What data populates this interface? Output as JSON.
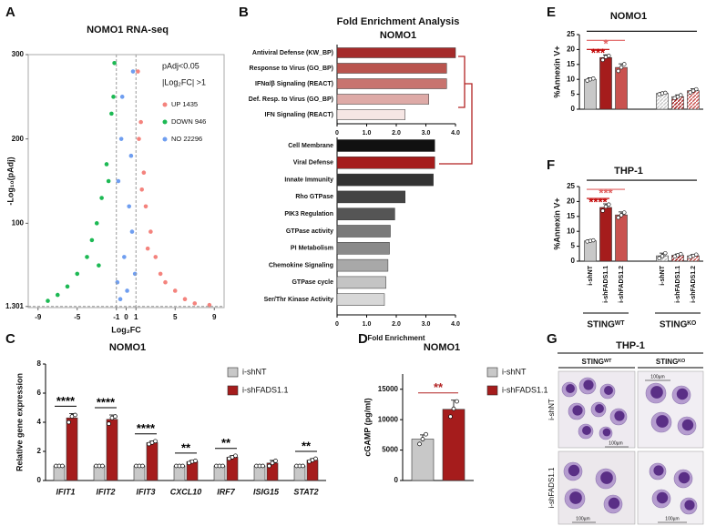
{
  "chart_data": [
    {
      "panel": "A",
      "type": "scatter",
      "title": "NOMO1 RNA-seq",
      "x_label": "Log₂FC",
      "y_label": "-Log₁₀(pAdj)",
      "xlim": [
        -10,
        10
      ],
      "xticks": [
        -9,
        -5,
        -1,
        0,
        1,
        5,
        9
      ],
      "ylim": [
        0,
        300
      ],
      "yticks": [
        1.301,
        100,
        200,
        300
      ],
      "legend_title": [
        "pAdj<0.05",
        "|Log₂FC| >1"
      ],
      "thresholds": {
        "x": [
          -1,
          1
        ],
        "y": 1.301
      },
      "series": [
        {
          "name": "UP 1435",
          "color": "#f4837d",
          "x": [
            1.2,
            1.5,
            1.8,
            2,
            2.5,
            3,
            3.5,
            4,
            5,
            6,
            7,
            8.5,
            1.3,
            1.6,
            2.2
          ],
          "values": [
            280,
            220,
            160,
            120,
            90,
            60,
            40,
            30,
            20,
            10,
            5,
            3,
            200,
            140,
            70
          ]
        },
        {
          "name": "DOWN 946",
          "color": "#1db954",
          "x": [
            -1.2,
            -1.5,
            -2,
            -2.5,
            -3,
            -3.5,
            -4,
            -5,
            -6,
            -7,
            -8,
            -1.8,
            -1.3,
            -2.8
          ],
          "values": [
            290,
            230,
            170,
            130,
            100,
            80,
            60,
            40,
            25,
            15,
            8,
            150,
            250,
            50
          ]
        },
        {
          "name": "NO 22296",
          "color": "#6f9ef0",
          "x": [
            -0.5,
            -0.8,
            0.3,
            0.6,
            -0.2,
            0.9,
            -0.9,
            0.1,
            0.5,
            -0.4,
            0.7,
            -0.6
          ],
          "values": [
            200,
            150,
            120,
            90,
            60,
            40,
            30,
            20,
            180,
            250,
            280,
            10
          ]
        }
      ]
    },
    {
      "panel": "B",
      "type": "hbar",
      "title": "Fold Enrichment Analysis",
      "subtitle": "NOMO1",
      "categories": [
        "Antiviral Defense (KW_BP)",
        "Response to Virus (GO_BP)",
        "IFNα/β Signaling (REACT)",
        "Def. Resp. to Virus (GO_BP)",
        "IFN Signaling (REACT)"
      ],
      "values": [
        4.0,
        3.7,
        3.7,
        3.1,
        2.3
      ],
      "colors": [
        "#a52a2a",
        "#b9544e",
        "#c8746f",
        "#deaaa7",
        "#f6e6e4"
      ],
      "xlim": [
        0,
        4
      ],
      "xticks": [
        0,
        {
          "value": 1,
          "label": "1.0"
        },
        {
          "value": 2,
          "label": "2.0"
        },
        {
          "value": 3,
          "label": "3.0"
        },
        {
          "value": 4,
          "label": "4.0"
        }
      ]
    },
    {
      "type": "hbar",
      "x_label": "Fold Enrichment",
      "categories": [
        "Cell Membrane",
        "Viral Defense",
        "Innate Immunity",
        "Rho GTPase",
        "PIK3 Regulation",
        "GTPase activity",
        "PI Metabolism",
        "Chemokine Signaling",
        "GTPase cycle",
        "Ser/Thr Kinase Activity"
      ],
      "values": [
        3.3,
        3.3,
        3.25,
        2.3,
        1.95,
        1.8,
        1.77,
        1.72,
        1.65,
        1.6
      ],
      "colors": [
        "#111111",
        "#a51c1c",
        "#333333",
        "#444444",
        "#555555",
        "#7a7a7a",
        "#8a8a8a",
        "#a8a8a8",
        "#c4c4c4",
        "#d8d8d8"
      ],
      "xlim": [
        0,
        4
      ],
      "xticks": [
        0,
        {
          "value": 1,
          "label": "1.0"
        },
        {
          "value": 2,
          "label": "2.0"
        },
        {
          "value": 3,
          "label": "3.0"
        },
        {
          "value": 4,
          "label": "4.0"
        }
      ]
    },
    {
      "panel": "C",
      "type": "grouped_bar",
      "title": "NOMO1",
      "y_label": "Relative gene expression",
      "categories": [
        "IFIT1",
        "IFIT2",
        "IFIT3",
        "CXCL10",
        "IRF7",
        "ISIG15",
        "STAT2"
      ],
      "ylim": [
        0,
        8
      ],
      "yticks": [
        0,
        2,
        4,
        6,
        8
      ],
      "series": [
        {
          "name": "i-shNT",
          "color": "#c8c8c8",
          "values": [
            1,
            1,
            1,
            1,
            1,
            1,
            1
          ],
          "errors": [
            0.05,
            0.05,
            0.05,
            0.05,
            0.05,
            0.05,
            0.05
          ],
          "points": [
            [
              1,
              1,
              1
            ],
            [
              1,
              1,
              1
            ],
            [
              1,
              1,
              1
            ],
            [
              1,
              1,
              1
            ],
            [
              1,
              1,
              1
            ],
            [
              1,
              1,
              1
            ],
            [
              1,
              1,
              1
            ]
          ]
        },
        {
          "name": "i-shFADS1.1",
          "color": "#a51c1c",
          "values": [
            4.3,
            4.2,
            2.6,
            1.3,
            1.6,
            1.2,
            1.4
          ],
          "errors": [
            0.3,
            0.3,
            0.1,
            0.08,
            0.1,
            0.18,
            0.1
          ],
          "points": [
            [
              4.0,
              4.4,
              4.5
            ],
            [
              3.9,
              4.3,
              4.4
            ],
            [
              2.5,
              2.6,
              2.7
            ],
            [
              1.2,
              1.3,
              1.35
            ],
            [
              1.5,
              1.6,
              1.7
            ],
            [
              1.0,
              1.2,
              1.35
            ],
            [
              1.3,
              1.4,
              1.5
            ]
          ]
        }
      ],
      "significance": [
        "****",
        "****",
        "****",
        "**",
        "**",
        null,
        "**"
      ],
      "significance_color": "#000000"
    },
    {
      "panel": "D",
      "type": "grouped_bar",
      "title": "NOMO1",
      "y_label": "cGAMP (pg/ml)",
      "ylim": [
        0,
        17500
      ],
      "yticks": [
        0,
        5000,
        10000,
        15000
      ],
      "series": [
        {
          "name": "i-shNT",
          "color": "#c8c8c8",
          "values": [
            6800
          ],
          "errors": [
            700
          ],
          "points": [
            [
              6000,
              6800,
              7600
            ]
          ]
        },
        {
          "name": "i-shFADS1.1",
          "color": "#a51c1c",
          "values": [
            11700
          ],
          "errors": [
            1500
          ],
          "points": [
            [
              10500,
              11800,
              13000
            ]
          ]
        }
      ],
      "significance": [
        "**"
      ],
      "significance_color": "#b22222"
    },
    {
      "panel": "E",
      "type": "bar",
      "title": "NOMO1",
      "y_label": "%Annexin V+",
      "ylim": [
        0,
        25
      ],
      "yticks": [
        0,
        5,
        10,
        15,
        20,
        25
      ],
      "values": [
        10,
        17.3,
        14,
        5.3,
        4.2,
        6.2
      ],
      "errors": [
        0.5,
        0.9,
        1.2,
        0.3,
        0.6,
        0.6
      ],
      "points": [
        [
          9.6,
          10,
          10.3
        ],
        [
          16.5,
          17.5,
          17.9
        ],
        [
          12.8,
          14,
          15.1
        ],
        [
          5,
          5.3,
          5.5
        ],
        [
          3.7,
          4.2,
          4.7
        ],
        [
          5.6,
          6.2,
          6.7
        ]
      ],
      "colors": [
        "#c8c8c8",
        "#a51c1c",
        "#c9524f",
        "#c8c8c8",
        "#a51c1c",
        "#c9524f"
      ],
      "hatched": [
        false,
        false,
        false,
        true,
        true,
        true
      ],
      "significance": [
        {
          "from": 0,
          "to": 1,
          "label": "***",
          "color": "#c00000"
        },
        {
          "from": 0,
          "to": 2,
          "label": "*",
          "color": "#e06060"
        },
        {
          "from": 0,
          "to": 5,
          "color": "#000000"
        }
      ]
    },
    {
      "panel": "F",
      "type": "bar",
      "title": "THP-1",
      "y_label": "%Annexin V+",
      "ylim": [
        0,
        25
      ],
      "yticks": [
        0,
        5,
        10,
        15,
        20,
        25
      ],
      "categories": [
        "i-shNT",
        "i-shFADS1.1",
        "i-shFADS1.2",
        "i-shNT",
        "i-shFADS1.1",
        "i-shFADS1.2"
      ],
      "group_labels": [
        "STINGᵂᵀ",
        "STINGᴷᴼ"
      ],
      "values": [
        6.8,
        18,
        15.5,
        1.8,
        2,
        1.8
      ],
      "errors": [
        0.3,
        1.2,
        1.0,
        0.9,
        0.4,
        0.4
      ],
      "points": [
        [
          6.6,
          6.8,
          7
        ],
        [
          16.9,
          18.3,
          19
        ],
        [
          14.6,
          15.4,
          16.3
        ],
        [
          1,
          1.7,
          2.7
        ],
        [
          1.6,
          2,
          2.4
        ],
        [
          1.4,
          1.8,
          2.2
        ]
      ],
      "colors": [
        "#c8c8c8",
        "#a51c1c",
        "#c9524f",
        "#c8c8c8",
        "#a51c1c",
        "#c9524f"
      ],
      "hatched": [
        false,
        false,
        false,
        true,
        true,
        true
      ],
      "significance": [
        {
          "from": 0,
          "to": 1,
          "label": "****",
          "color": "#c00000"
        },
        {
          "from": 0,
          "to": 2,
          "label": "***",
          "color": "#e06060"
        },
        {
          "from": 0,
          "to": 5,
          "color": "#000000"
        }
      ]
    }
  ],
  "panel_g": {
    "panel": "G",
    "title": "THP-1",
    "columns": [
      "STINGᵂᵀ",
      "STINGᴷᴼ"
    ],
    "rows": [
      "i-shNT",
      "i-shFADS1.1"
    ],
    "scale_label": "100µm"
  }
}
